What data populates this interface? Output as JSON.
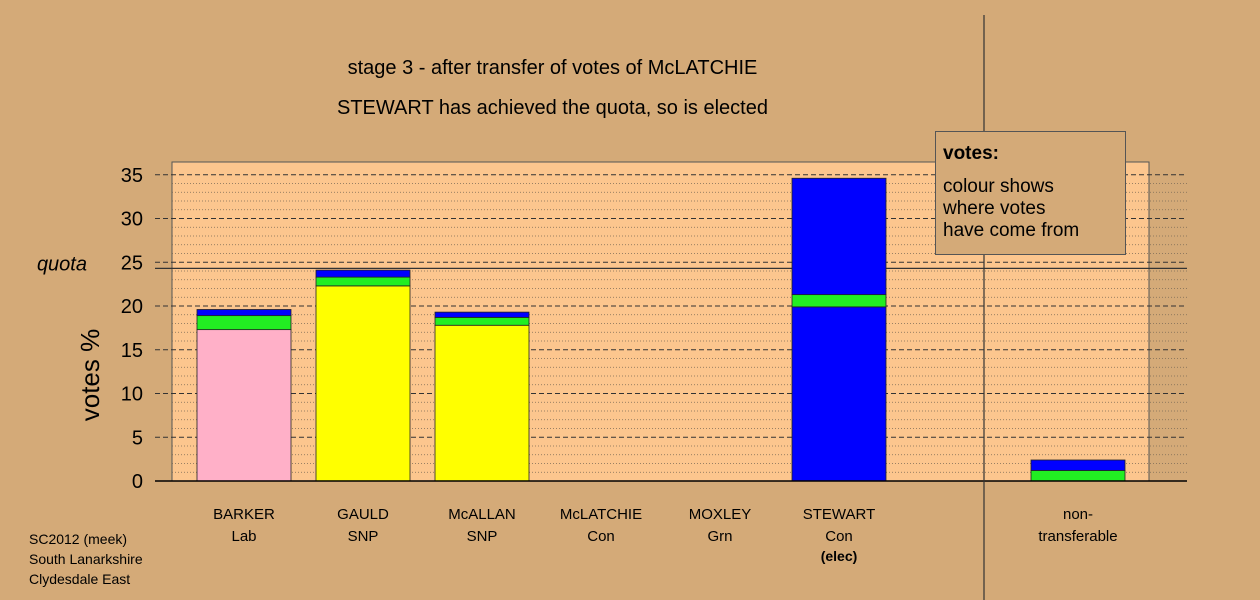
{
  "chart_data": {
    "type": "bar",
    "title": "stage 3 - after transfer of votes of McLATCHIE",
    "subtitle": "STEWART has achieved the quota, so is elected",
    "ylabel": "votes %",
    "ylim": [
      0,
      36.5
    ],
    "yticks": [
      "0",
      "5",
      "10",
      "15",
      "20",
      "25",
      "30",
      "35"
    ],
    "quota_label": "quota",
    "quota": 24.3,
    "grid": true,
    "candidates": [
      {
        "name": "BARKER",
        "party": "Lab",
        "note": "",
        "segments": [
          {
            "value": 17.3,
            "color": "#ffb0c8"
          },
          {
            "value": 1.6,
            "color": "#22ee22"
          },
          {
            "value": 0.7,
            "color": "#0000ff"
          }
        ]
      },
      {
        "name": "GAULD",
        "party": "SNP",
        "note": "",
        "segments": [
          {
            "value": 22.3,
            "color": "#ffff00"
          },
          {
            "value": 1.0,
            "color": "#22ee22"
          },
          {
            "value": 0.8,
            "color": "#0000ff"
          }
        ]
      },
      {
        "name": "McALLAN",
        "party": "SNP",
        "note": "",
        "segments": [
          {
            "value": 17.8,
            "color": "#ffff00"
          },
          {
            "value": 0.9,
            "color": "#22ee22"
          },
          {
            "value": 0.6,
            "color": "#0000ff"
          }
        ]
      },
      {
        "name": "McLATCHIE",
        "party": "Con",
        "note": "",
        "segments": []
      },
      {
        "name": "MOXLEY",
        "party": "Grn",
        "note": "",
        "segments": []
      },
      {
        "name": "STEWART",
        "party": "Con",
        "note": "(elec)",
        "segments": [
          {
            "value": 19.9,
            "color": "#0000ff"
          },
          {
            "value": 1.4,
            "color": "#22ee22"
          },
          {
            "value": 13.3,
            "color": "#0000ff"
          }
        ]
      }
    ],
    "nontransferable": {
      "label1": "non-",
      "label2": "transferable",
      "segments": [
        {
          "value": 1.2,
          "color": "#22ee22"
        },
        {
          "value": 1.2,
          "color": "#0000ff"
        }
      ]
    }
  },
  "legend": {
    "title": "votes:",
    "line1": "colour shows",
    "line2": "where votes",
    "line3": "have come from"
  },
  "source": {
    "line1": "SC2012 (meek)",
    "line2": "South Lanarkshire",
    "line3": "Clydesdale East"
  }
}
